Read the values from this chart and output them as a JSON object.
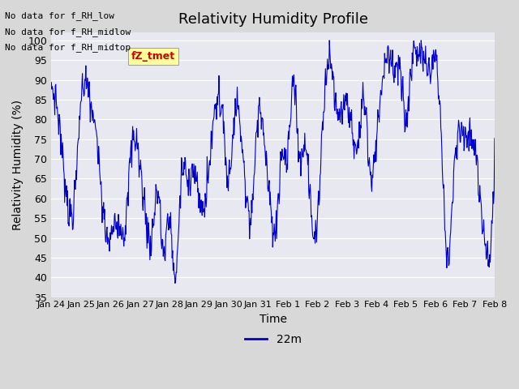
{
  "title": "Relativity Humidity Profile",
  "xlabel": "Time",
  "ylabel": "Relativity Humidity (%)",
  "ylim": [
    35,
    102
  ],
  "yticks": [
    35,
    40,
    45,
    50,
    55,
    60,
    65,
    70,
    75,
    80,
    85,
    90,
    95,
    100
  ],
  "line_color": "#0000cc",
  "line_label": "22m",
  "legend_label": "fZ_tmet",
  "legend_color": "#cc0000",
  "legend_bg": "#ffff99",
  "no_data_texts": [
    "No data for f_RH_low",
    "No data for f_RH_midlow",
    "No data for f_RH_midtop"
  ],
  "xtick_labels": [
    "Jan 24",
    "Jan 25",
    "Jan 26",
    "Jan 27",
    "Jan 28",
    "Jan 29",
    "Jan 30",
    "Jan 31",
    "Feb 1",
    "Feb 2",
    "Feb 3",
    "Feb 4",
    "Feb 5",
    "Feb 6",
    "Feb 7",
    "Feb 8"
  ],
  "bg_color": "#e8e8e8",
  "plot_bg": "#f0f0f0"
}
